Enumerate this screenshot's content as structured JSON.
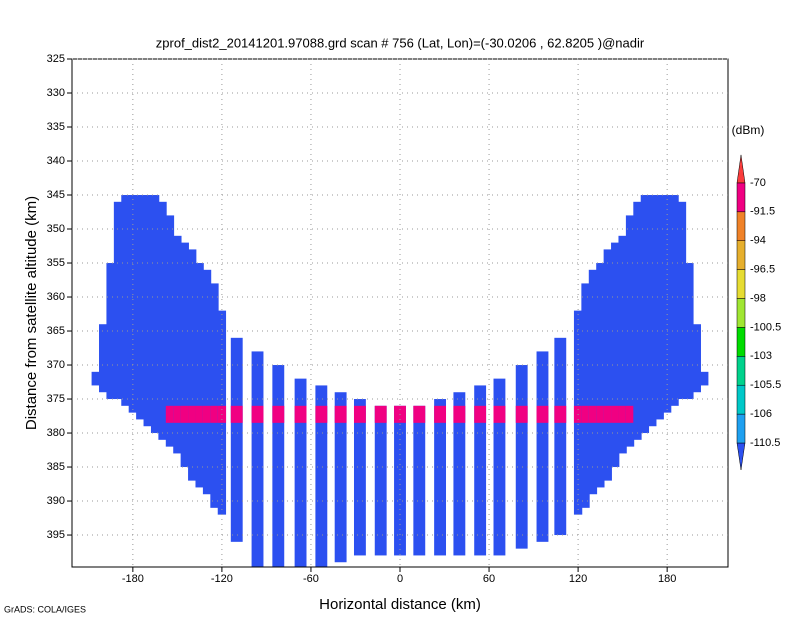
{
  "chart_data": {
    "type": "swath",
    "title": "zprof_dist2_20141201.97088.grd  scan # 756  (Lat, Lon)=(-30.0206 , 62.8205 )@nadir",
    "x_label": "Horizontal distance (km)",
    "y_label": "Distance from satellite altitude (km)",
    "credit": "GrADS: COLA/IGES",
    "xlim": [
      -221,
      221
    ],
    "ylim": [
      399.7,
      325
    ],
    "xticks": [
      -180,
      -120,
      -60,
      0,
      60,
      120,
      180
    ],
    "yticks": [
      325,
      330,
      335,
      340,
      345,
      350,
      355,
      360,
      365,
      370,
      375,
      380,
      385,
      390,
      395
    ],
    "grid": true,
    "wing_columns": {
      "x": [
        -205,
        -200,
        -195,
        -190,
        -185,
        -180,
        -175,
        -170,
        -165,
        -160,
        -155,
        -150,
        -145,
        -140,
        -135,
        -130,
        -125,
        -120,
        120,
        125,
        130,
        135,
        140,
        145,
        150,
        155,
        160,
        165,
        170,
        175,
        180,
        185,
        190,
        195,
        200,
        205
      ],
      "top": [
        371,
        364,
        355,
        346,
        345,
        345,
        345,
        345,
        345,
        346,
        348,
        351,
        352,
        353,
        355,
        356,
        358,
        362,
        362,
        358,
        356,
        355,
        353,
        352,
        351,
        348,
        346,
        345,
        345,
        345,
        345,
        345,
        346,
        355,
        364,
        371
      ],
      "bottom": [
        373,
        374,
        375,
        375,
        376,
        377,
        378,
        379,
        380,
        381,
        382,
        383,
        385,
        387,
        388,
        389,
        391,
        392,
        392,
        391,
        389,
        388,
        387,
        385,
        383,
        382,
        381,
        380,
        379,
        378,
        377,
        376,
        375,
        375,
        374,
        373
      ]
    },
    "strip_columns": {
      "x": [
        -110,
        -96,
        -82,
        -67,
        -53,
        -40,
        -27,
        -13,
        0,
        13,
        27,
        40,
        54,
        67,
        82,
        96,
        108
      ],
      "top": [
        366,
        368,
        370,
        372,
        373,
        374,
        375,
        376,
        376,
        376,
        375,
        374,
        373,
        372,
        370,
        368,
        366
      ],
      "bottom": [
        396,
        399.7,
        399.7,
        399.7,
        399.7,
        399,
        398,
        398,
        398,
        398,
        398,
        398,
        398,
        398,
        397,
        396,
        395
      ]
    },
    "bright_band": {
      "top": 376,
      "bottom": 378.5,
      "xlim": [
        -155,
        155
      ]
    },
    "colorbar": {
      "unit": "(dBm)",
      "levels": [
        -110.5,
        -106,
        -105.5,
        -103,
        -100.5,
        -98,
        -96.5,
        -94,
        -91.5,
        -70
      ],
      "colors": [
        "#2c50f0",
        "#1ea0f0",
        "#00c8c8",
        "#00d28c",
        "#00dc00",
        "#a0e632",
        "#e6dc32",
        "#e6af2d",
        "#f08228",
        "#f00082",
        "#fa3c3c"
      ]
    }
  }
}
